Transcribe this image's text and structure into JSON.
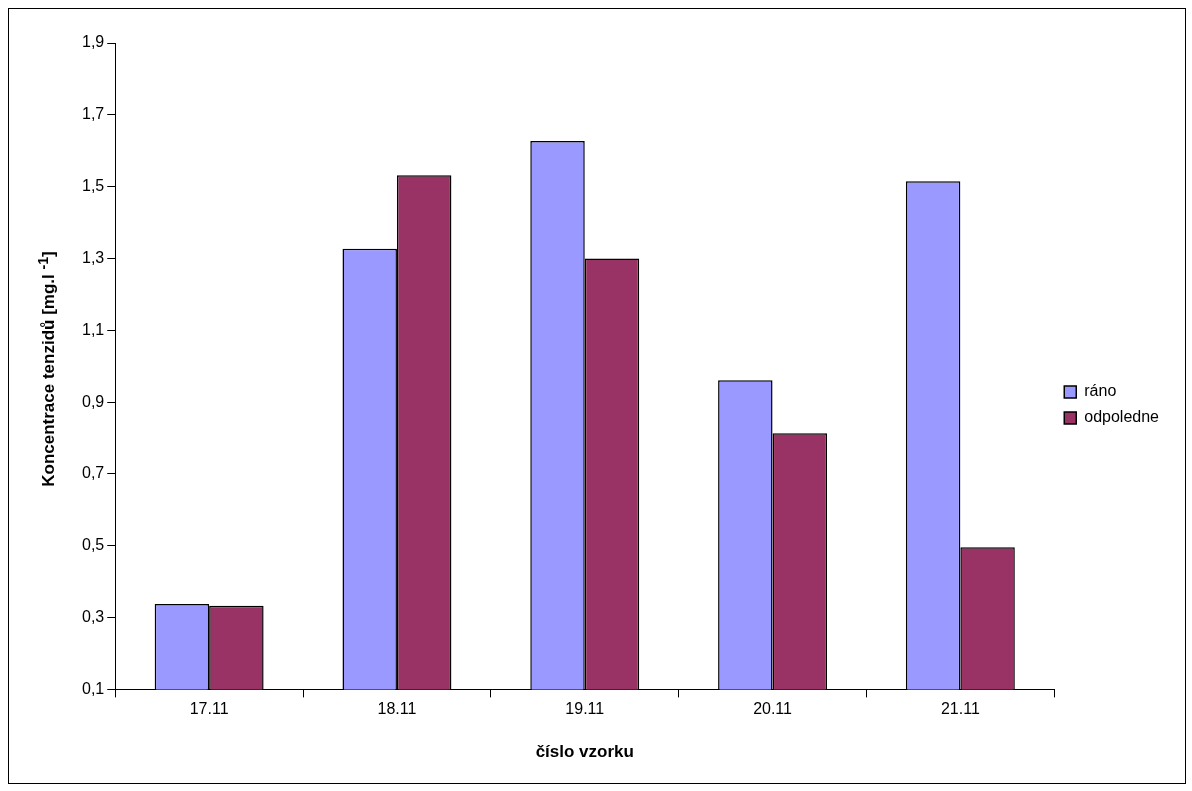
{
  "chart_data": {
    "type": "bar",
    "xlabel": "číslo vzorku",
    "ylabel": "Koncentrace tenzidů [mg.l $^{-1}$]",
    "categories": [
      "17.11",
      "18.11",
      "19.11",
      "20.11",
      "21.11"
    ],
    "series": [
      {
        "name": "ráno",
        "color": "#9999ff",
        "values": [
          0.338,
          1.327,
          1.627,
          0.961,
          1.515
        ]
      },
      {
        "name": "odpoledne",
        "color": "#993366",
        "values": [
          0.333,
          1.532,
          1.3,
          0.813,
          0.496
        ]
      }
    ],
    "ylim": [
      0.1,
      1.9
    ],
    "yticks": [
      {
        "value": 0.1,
        "label": "0,1"
      },
      {
        "value": 0.3,
        "label": "0,3"
      },
      {
        "value": 0.5,
        "label": "0,5"
      },
      {
        "value": 0.7,
        "label": "0,7"
      },
      {
        "value": 0.9,
        "label": "0,9"
      },
      {
        "value": 1.1,
        "label": "1,1"
      },
      {
        "value": 1.3,
        "label": "1,3"
      },
      {
        "value": 1.5,
        "label": "1,5"
      },
      {
        "value": 1.7,
        "label": "1,7"
      },
      {
        "value": 1.9,
        "label": "1,9"
      }
    ],
    "grid": false,
    "legend": "right"
  }
}
